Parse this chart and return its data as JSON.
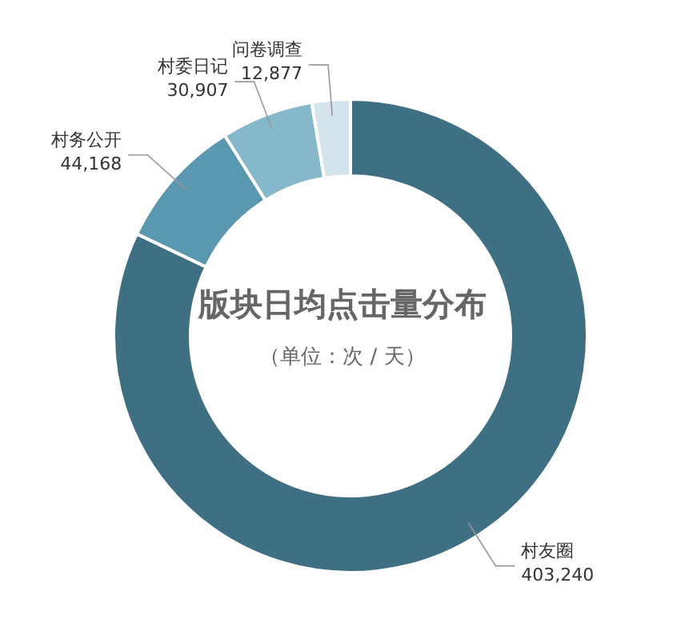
{
  "chart_data": {
    "type": "donut",
    "title": "版块日均点击量分布",
    "subtitle": "（单位：次 / 天）",
    "categories": [
      "村友圈",
      "村务公开",
      "村委日记",
      "问卷调查"
    ],
    "values": [
      403240,
      44168,
      30907,
      12877
    ],
    "value_labels": [
      "403,240",
      "44,168",
      "30,907",
      "12,877"
    ],
    "colors": [
      "#3f6f82",
      "#5a97b0",
      "#86b8cc",
      "#d5e4ec"
    ],
    "legend": false
  }
}
